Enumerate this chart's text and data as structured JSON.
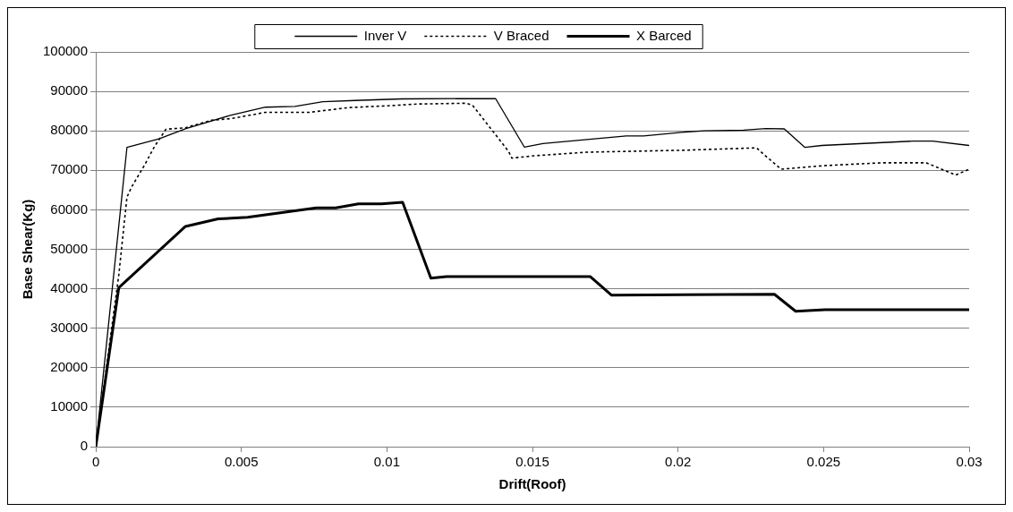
{
  "chart_data": {
    "type": "line",
    "xlabel": "Drift(Roof)",
    "ylabel": "Base Shear(Kg)",
    "xlim": [
      0,
      0.03
    ],
    "xticks": [
      0,
      0.005,
      0.01,
      0.015,
      0.02,
      0.025,
      0.03
    ],
    "ylim": [
      0,
      100000
    ],
    "yticks": [
      0,
      10000,
      20000,
      30000,
      40000,
      50000,
      60000,
      70000,
      80000,
      90000,
      100000
    ],
    "grid": "y",
    "legend": "top",
    "marker": "none",
    "series": [
      {
        "name": "Inver V",
        "color": "#000000",
        "line_style": "solid",
        "x": [
          0,
          0.00107,
          0.00217,
          0.0031,
          0.00465,
          0.00583,
          0.00684,
          0.0078,
          0.0089,
          0.0105,
          0.01373,
          0.01472,
          0.01536,
          0.01822,
          0.01882,
          0.02023,
          0.0209,
          0.02225,
          0.02302,
          0.02365,
          0.02436,
          0.02494,
          0.02807,
          0.02874,
          0.03
        ],
        "values": [
          0,
          75800,
          78000,
          80600,
          84000,
          86000,
          86200,
          87400,
          87700,
          88100,
          88200,
          75900,
          76800,
          78700,
          78700,
          79700,
          80000,
          80200,
          80600,
          80500,
          75800,
          76300,
          77400,
          77400,
          76300
        ]
      },
      {
        "name": "V Braced",
        "color": "#000000",
        "line_style": "dotted",
        "x": [
          0,
          0.00079,
          0.00107,
          0.00123,
          0.00168,
          0.00202,
          0.00241,
          0.00308,
          0.00398,
          0.00465,
          0.00583,
          0.00734,
          0.00869,
          0.01015,
          0.01104,
          0.01273,
          0.01295,
          0.01418,
          0.01429,
          0.01508,
          0.01687,
          0.02023,
          0.0227,
          0.02292,
          0.02354,
          0.02505,
          0.02696,
          0.02853,
          0.02954,
          0.03
        ],
        "values": [
          0,
          43500,
          63200,
          65800,
          71400,
          76100,
          80400,
          80800,
          82700,
          83100,
          84700,
          84700,
          85900,
          86400,
          86800,
          87000,
          86400,
          74800,
          73100,
          73700,
          74600,
          75100,
          75700,
          74200,
          70300,
          71200,
          71900,
          71900,
          68800,
          70300
        ]
      },
      {
        "name": "X Barced",
        "color": "#000000",
        "line_style": "solid",
        "x": [
          0,
          0.00079,
          0.00308,
          0.0042,
          0.00521,
          0.00757,
          0.00824,
          0.00902,
          0.00981,
          0.01054,
          0.01151,
          0.01205,
          0.01698,
          0.01771,
          0.02331,
          0.02404,
          0.02505,
          0.03
        ],
        "values": [
          0,
          40300,
          55800,
          57700,
          58100,
          60500,
          60500,
          61500,
          61500,
          61900,
          42700,
          43100,
          43100,
          38400,
          38600,
          34300,
          34700,
          34700
        ]
      }
    ]
  }
}
